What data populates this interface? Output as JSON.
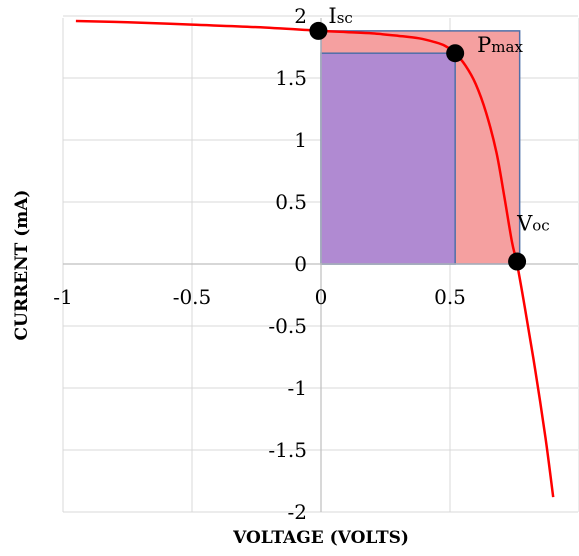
{
  "chart_data": {
    "type": "line",
    "title": "",
    "xlabel": "VOLTAGE (VOLTS)",
    "ylabel": "CURRENT (mA)",
    "xlim": [
      -1,
      1
    ],
    "ylim": [
      -2,
      2
    ],
    "xticks": [
      -1,
      -0.5,
      0,
      0.5,
      1
    ],
    "xtick_labels": [
      "-1",
      "-0.5",
      "0",
      "0.5",
      "1"
    ],
    "yticks": [
      2,
      1.5,
      1,
      0.5,
      0,
      -0.5,
      -1,
      -1.5,
      -2
    ],
    "ytick_labels": [
      "2",
      "1.5",
      "1",
      "0.5",
      "0",
      "-0.5",
      "-1",
      "-1.5",
      "-2"
    ],
    "grid": true,
    "series": [
      {
        "color": "#ff0000",
        "x": [
          -0.95,
          -0.75,
          -0.5,
          -0.25,
          0,
          0.1,
          0.2,
          0.3,
          0.38,
          0.44,
          0.48,
          0.52,
          0.56,
          0.6,
          0.64,
          0.68,
          0.71,
          0.74,
          0.76,
          0.79,
          0.83,
          0.87,
          0.9
        ],
        "y": [
          1.96,
          1.95,
          1.93,
          1.91,
          1.88,
          1.87,
          1.86,
          1.84,
          1.82,
          1.79,
          1.76,
          1.7,
          1.6,
          1.45,
          1.22,
          0.9,
          0.55,
          0.18,
          0.0,
          -0.35,
          -0.85,
          -1.4,
          -1.88
        ]
      }
    ],
    "rectangles": [
      {
        "name": "Isc x Voc",
        "x": [
          0,
          0.77
        ],
        "y": [
          0,
          1.88
        ],
        "color": "#f5a0a0"
      },
      {
        "name": "Pmax",
        "x": [
          0,
          0.52
        ],
        "y": [
          0,
          1.7
        ],
        "color": "#b08ad2"
      }
    ],
    "points": [
      {
        "x": -0.01,
        "y": 1.88,
        "label": "I",
        "label_sub": "sc"
      },
      {
        "x": 0.52,
        "y": 1.7,
        "label": "P",
        "label_sub": "max"
      },
      {
        "x": 0.76,
        "y": 0.02,
        "label": "V",
        "label_sub": "oc"
      }
    ]
  }
}
